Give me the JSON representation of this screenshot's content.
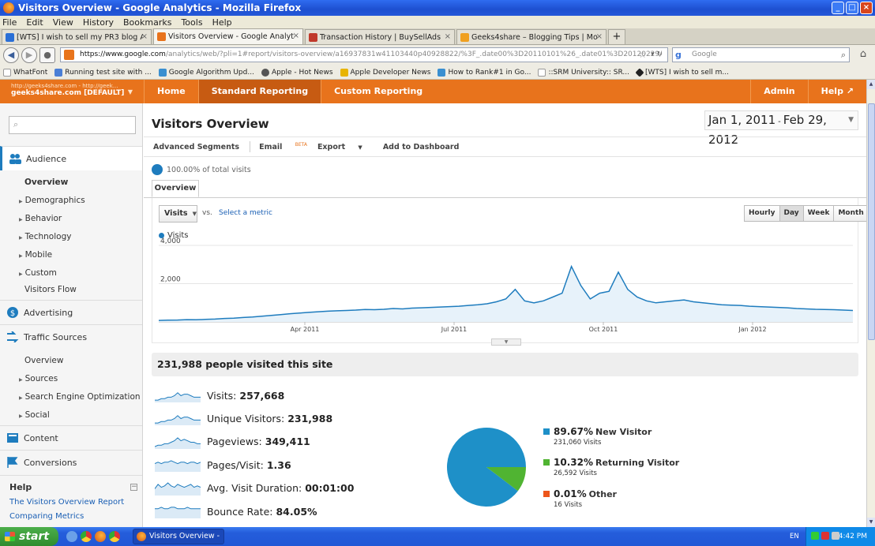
{
  "window": {
    "title": "Visitors Overview - Google Analytics - Mozilla Firefox",
    "controls": [
      "_",
      "□",
      "×"
    ]
  },
  "menu": [
    "File",
    "Edit",
    "View",
    "History",
    "Bookmarks",
    "Tools",
    "Help"
  ],
  "tabs": [
    {
      "label": "[WTS] I wish to sell my PR3 blog Alexa 4...",
      "fav": "#2a6fd6"
    },
    {
      "label": "Visitors Overview - Google Analytics",
      "fav": "#e8731c"
    },
    {
      "label": "Transaction History | BuySellAds",
      "fav": "#c0392b"
    },
    {
      "label": "Geeks4share – Blogging Tips | Money Ma...",
      "fav": "#f0a020"
    }
  ],
  "newtab_label": "+",
  "url": {
    "domain": "https://www.google.com",
    "path": "/analytics/web/?pli=1#report/visitors-overview/a16937831w41103440p40928822/%3F_.date00%3D20110101%26_.date01%3D20120229/"
  },
  "search": {
    "placeholder": "Google",
    "icon_label": "g"
  },
  "bookmarks": [
    {
      "label": "WhatFont",
      "color": "#fff"
    },
    {
      "label": "Running test site with ...",
      "color": "#4a7fd6"
    },
    {
      "label": "Google Algorithm Upd...",
      "color": "#3a8fd0"
    },
    {
      "label": "Apple - Hot News",
      "color": "#555"
    },
    {
      "label": "Apple Developer News",
      "color": "#e8b400"
    },
    {
      "label": "How to Rank#1 in Go...",
      "color": "#3a8fd0"
    },
    {
      "label": "::SRM University:: SR...",
      "color": "#fff"
    },
    {
      "label": "[WTS] I wish to sell m...",
      "color": "#222"
    }
  ],
  "ga": {
    "account_url": "http://geeks4share.com - http://geek...",
    "account_name": "geeks4share.com [DEFAULT]",
    "nav": [
      "Home",
      "Standard Reporting",
      "Custom Reporting"
    ],
    "right": [
      "Admin",
      "Help ↗"
    ]
  },
  "sidebar": {
    "audience": "Audience",
    "audience_items": [
      "Overview",
      "Demographics",
      "Behavior",
      "Technology",
      "Mobile",
      "Custom"
    ],
    "visitors_flow": "Visitors Flow",
    "advertising": "Advertising",
    "traffic_sources": "Traffic Sources",
    "traffic_items": [
      "Overview",
      "Sources",
      "Search Engine Optimization",
      "Social"
    ],
    "content": "Content",
    "conversions": "Conversions",
    "help_title": "Help",
    "help_links": [
      "The Visitors Overview Report",
      "Comparing Metrics"
    ]
  },
  "main": {
    "title": "Visitors Overview",
    "date_start": "Jan 1, 2011",
    "date_sep": "-",
    "date_end": "Feb 29, 2012",
    "tools": {
      "segments": "Advanced Segments",
      "email": "Email",
      "beta": "BETA",
      "export": "Export",
      "dashboard": "Add to Dashboard"
    },
    "total_visits": "100.00% of total visits",
    "overview_tab": "Overview",
    "metric_dropdown": "Visits",
    "vs": "vs.",
    "select_metric": "Select a metric",
    "granularity": [
      "Hourly",
      "Day",
      "Week",
      "Month"
    ],
    "granularity_selected": "Day",
    "summary": "231,988 people visited this site",
    "metrics": [
      {
        "label": "Visits:",
        "value": "257,668"
      },
      {
        "label": "Unique Visitors:",
        "value": "231,988"
      },
      {
        "label": "Pageviews:",
        "value": "349,411"
      },
      {
        "label": "Pages/Visit:",
        "value": "1.36"
      },
      {
        "label": "Avg. Visit Duration:",
        "value": "00:01:00"
      },
      {
        "label": "Bounce Rate:",
        "value": "84.05%"
      }
    ],
    "pie_legend": [
      {
        "pct": "89.67%",
        "name": "New Visitor",
        "sub": "231,060 Visits",
        "color": "#1e90c8"
      },
      {
        "pct": "10.32%",
        "name": "Returning Visitor",
        "sub": "26,592 Visits",
        "color": "#50b432"
      },
      {
        "pct": "0.01%",
        "name": "Other",
        "sub": "16 Visits",
        "color": "#ed561b"
      }
    ]
  },
  "chart_data": [
    {
      "type": "area",
      "series": [
        {
          "name": "Visits",
          "values": [
            80,
            90,
            100,
            120,
            110,
            130,
            150,
            180,
            200,
            230,
            260,
            300,
            340,
            380,
            430,
            460,
            500,
            530,
            560,
            580,
            600,
            620,
            650,
            640,
            660,
            700,
            680,
            720,
            740,
            760,
            780,
            800,
            820,
            860,
            900,
            950,
            1050,
            1200,
            1700,
            1100,
            1000,
            1100,
            1300,
            1500,
            2900,
            1900,
            1200,
            1500,
            1600,
            2600,
            1700,
            1300,
            1100,
            1000,
            1050,
            1100,
            1150,
            1050,
            1000,
            950,
            900,
            880,
            860,
            820,
            800,
            780,
            760,
            740,
            700,
            680,
            660,
            650,
            640,
            620,
            600
          ]
        }
      ],
      "x_ticks": [
        "Apr 2011",
        "Jul 2011",
        "Oct 2011",
        "Jan 2012"
      ],
      "y_ticks": [
        2000,
        4000
      ],
      "y_tick_labels": [
        "2,000",
        "4,000"
      ],
      "ylim": [
        0,
        4000
      ],
      "grid": true,
      "legend": "top-left"
    },
    {
      "type": "pie",
      "categories": [
        "New Visitor",
        "Returning Visitor",
        "Other"
      ],
      "values": [
        89.67,
        10.32,
        0.01
      ]
    }
  ],
  "taskbar": {
    "start": "start",
    "task": "Visitors Overview - G...",
    "lang": "EN",
    "time": "4:42 PM"
  }
}
